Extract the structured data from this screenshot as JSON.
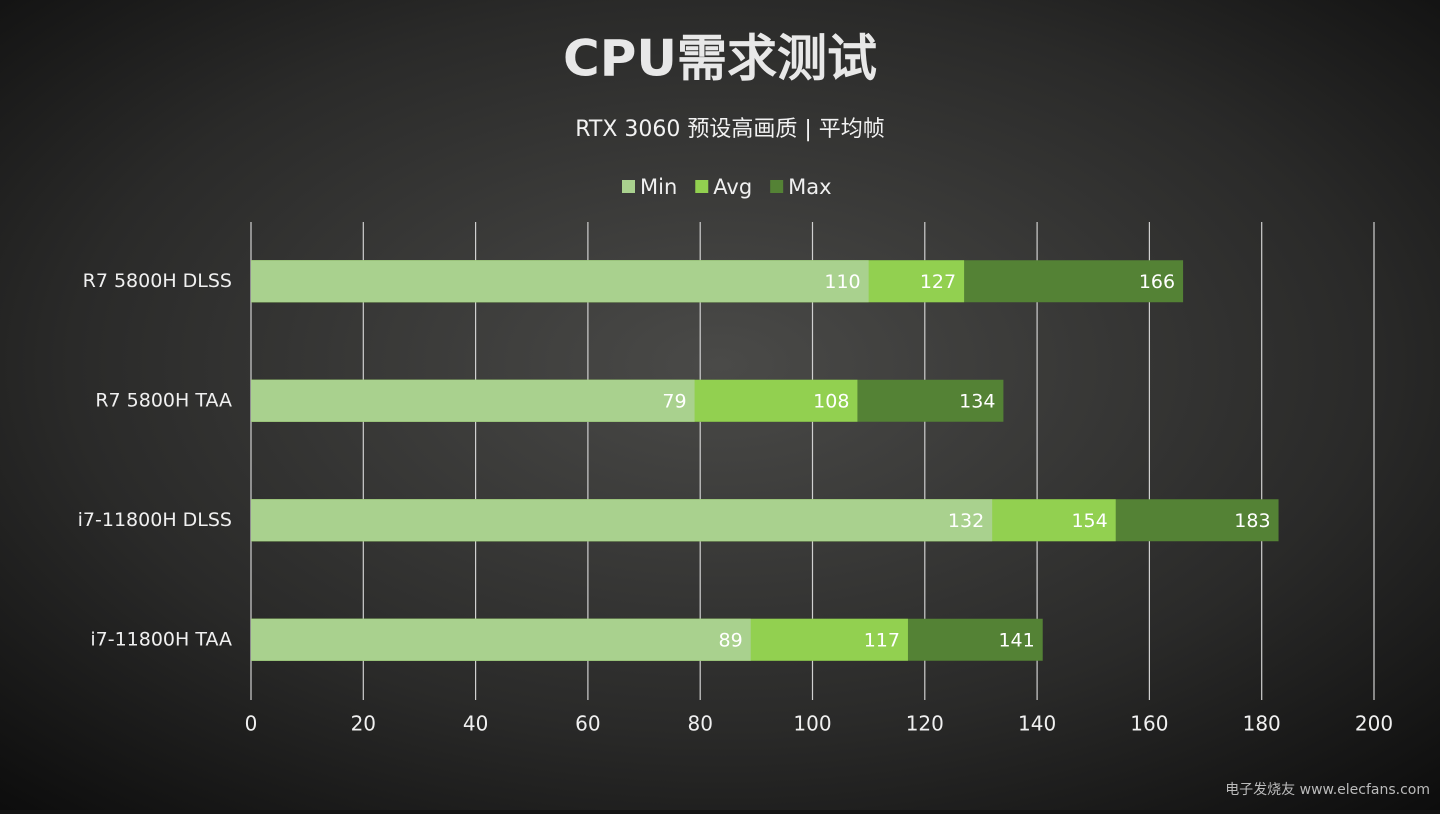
{
  "chart_data": {
    "type": "bar",
    "orientation": "horizontal",
    "title": "CPU需求测试",
    "subtitle": "RTX 3060 预设高画质 | 平均帧",
    "categories": [
      "R7 5800H DLSS",
      "R7 5800H TAA",
      "i7-11800H DLSS",
      "i7-11800H TAA"
    ],
    "series": [
      {
        "name": "Min",
        "color": "#a9d18e",
        "values": [
          110,
          79,
          132,
          89
        ]
      },
      {
        "name": "Avg",
        "color": "#92d050",
        "values": [
          127,
          108,
          154,
          117
        ]
      },
      {
        "name": "Max",
        "color": "#548235",
        "values": [
          166,
          134,
          183,
          141
        ]
      }
    ],
    "xlim": [
      0,
      200
    ],
    "xticks": [
      0,
      20,
      40,
      60,
      80,
      100,
      120,
      140,
      160,
      180,
      200
    ],
    "grid": true,
    "legend": "top",
    "watermark": "电子发烧友 www.elecfans.com"
  }
}
